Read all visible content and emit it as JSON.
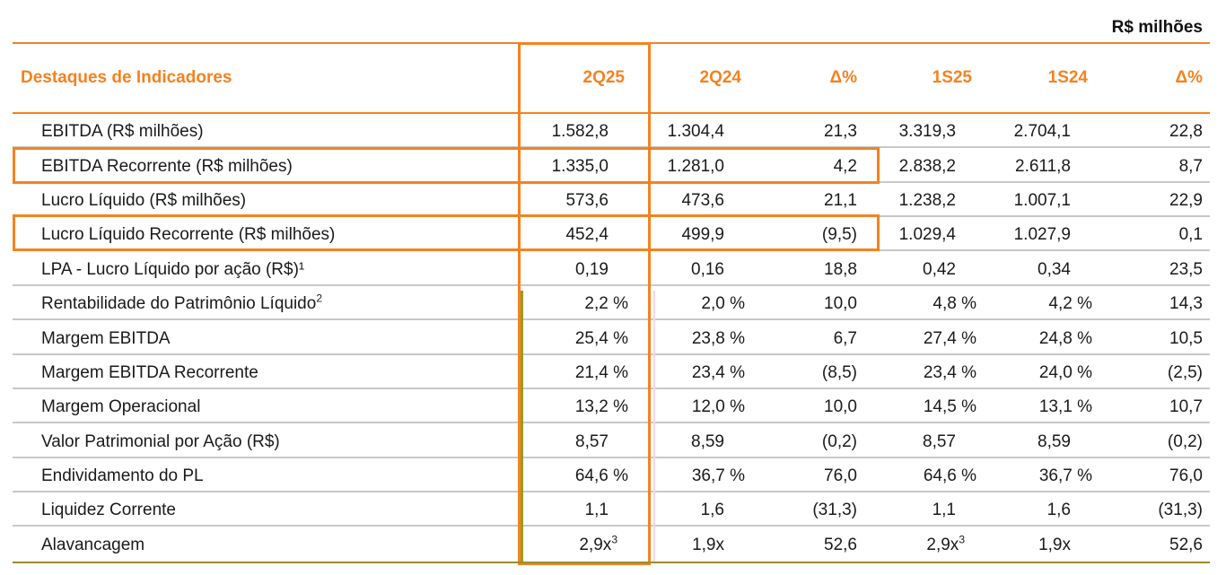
{
  "unit_label": "R$ milhões",
  "header": {
    "title": "Destaques de Indicadores",
    "columns": [
      "2Q25",
      "2Q24",
      "Δ%",
      "1S25",
      "1S24",
      "Δ%"
    ]
  },
  "rows": [
    {
      "label": "EBITDA  (R$ milhões)",
      "sup": "",
      "values": [
        "1.582,8",
        "1.304,4",
        "21,3",
        "3.319,3",
        "2.704,1",
        "22,8"
      ],
      "sups": [
        "",
        "",
        "",
        "",
        "",
        ""
      ]
    },
    {
      "label": "EBITDA  Recorrente  (R$ milhões)",
      "sup": "",
      "values": [
        "1.335,0",
        "1.281,0",
        "4,2",
        "2.838,2",
        "2.611,8",
        "8,7"
      ],
      "sups": [
        "",
        "",
        "",
        "",
        "",
        ""
      ]
    },
    {
      "label": "Lucro Líquido (R$ milhões)",
      "sup": "",
      "values": [
        "573,6",
        "473,6",
        "21,1",
        "1.238,2",
        "1.007,1",
        "22,9"
      ],
      "sups": [
        "",
        "",
        "",
        "",
        "",
        ""
      ]
    },
    {
      "label": "Lucro Líquido Recorrente (R$ milhões)",
      "sup": "",
      "values": [
        "452,4",
        "499,9",
        "(9,5)",
        "1.029,4",
        "1.027,9",
        "0,1"
      ],
      "sups": [
        "",
        "",
        "",
        "",
        "",
        ""
      ]
    },
    {
      "label": "LPA - Lucro Líquido por ação (R$)¹",
      "sup": "",
      "values": [
        "0,19",
        "0,16",
        "18,8",
        "0,42",
        "0,34",
        "23,5"
      ],
      "sups": [
        "",
        "",
        "",
        "",
        "",
        ""
      ]
    },
    {
      "label": "Rentabilidade do Patrimônio Líquido",
      "sup": "2",
      "values": [
        "2,2 %",
        "2,0 %",
        "10,0",
        "4,8 %",
        "4,2 %",
        "14,3"
      ],
      "sups": [
        "",
        "",
        "",
        "",
        "",
        ""
      ]
    },
    {
      "label": "Margem EBITDA",
      "sup": "",
      "values": [
        "25,4 %",
        "23,8 %",
        "6,7",
        "27,4 %",
        "24,8 %",
        "10,5"
      ],
      "sups": [
        "",
        "",
        "",
        "",
        "",
        ""
      ]
    },
    {
      "label": "Margem EBITDA Recorrente",
      "sup": "",
      "values": [
        "21,4 %",
        "23,4 %",
        "(8,5)",
        "23,4 %",
        "24,0 %",
        "(2,5)"
      ],
      "sups": [
        "",
        "",
        "",
        "",
        "",
        ""
      ]
    },
    {
      "label": "Margem Operacional",
      "sup": "",
      "values": [
        "13,2 %",
        "12,0 %",
        "10,0",
        "14,5 %",
        "13,1 %",
        "10,7"
      ],
      "sups": [
        "",
        "",
        "",
        "",
        "",
        ""
      ]
    },
    {
      "label": "Valor Patrimonial por Ação (R$)",
      "sup": "",
      "values": [
        "8,57",
        "8,59",
        "(0,2)",
        "8,57",
        "8,59",
        "(0,2)"
      ],
      "sups": [
        "",
        "",
        "",
        "",
        "",
        ""
      ]
    },
    {
      "label": "Endividamento do PL",
      "sup": "",
      "values": [
        "64,6 %",
        "36,7 %",
        "76,0",
        "64,6 %",
        "36,7 %",
        "76,0"
      ],
      "sups": [
        "",
        "",
        "",
        "",
        "",
        ""
      ]
    },
    {
      "label": "Liquidez Corrente",
      "sup": "",
      "values": [
        "1,1",
        "1,6",
        "(31,3)",
        "1,1",
        "1,6",
        "(31,3)"
      ],
      "sups": [
        "",
        "",
        "",
        "",
        "",
        ""
      ]
    },
    {
      "label": "Alavancagem",
      "sup": "",
      "values": [
        "2,9x",
        "1,9x",
        "52,6",
        "2,9x",
        "1,9x",
        "52,6"
      ],
      "sups": [
        "3",
        "",
        "",
        "3",
        "",
        ""
      ]
    }
  ],
  "colors": {
    "accent": "#f58220",
    "rule": "#c8c8c8",
    "bottom_rule": "#9a8b2e"
  }
}
